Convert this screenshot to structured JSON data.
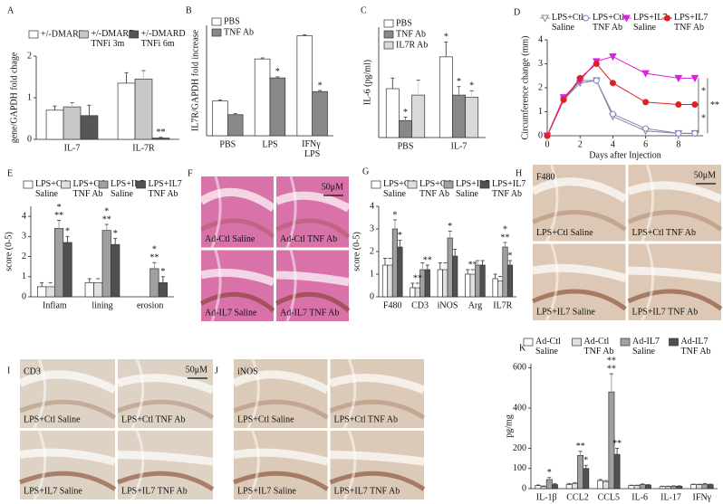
{
  "chart_data": [
    {
      "type": "bar",
      "panel": "A",
      "ylabel": "gene/GAPDH fold chage",
      "categories": [
        "IL-7",
        "IL-7R"
      ],
      "series": [
        {
          "name": "+/-DMARD",
          "color": "#ffffff",
          "values": [
            0.7,
            1.35
          ],
          "errors": [
            0.1,
            0.25
          ]
        },
        {
          "name": "+/-DMARD\nTNFi 3m",
          "color": "#c8c8c8",
          "values": [
            0.78,
            1.45
          ],
          "errors": [
            0.1,
            0.2
          ]
        },
        {
          "name": "+/-DMARD\nTNFi 6m",
          "color": "#555555",
          "values": [
            0.57,
            0.03
          ],
          "errors": [
            0.25,
            0.02
          ]
        }
      ],
      "ylim": [
        0,
        2
      ],
      "yticks": [
        0,
        1,
        2
      ],
      "legend": "top",
      "annotations": [
        {
          "text": "**",
          "series": 2,
          "category": 1
        }
      ]
    },
    {
      "type": "bar",
      "panel": "B",
      "ylabel": "IL7R/GAPDH fold increase",
      "categories": [
        "PBS",
        "LPS",
        "IFNγ\nLPS"
      ],
      "series": [
        {
          "name": "PBS",
          "color": "#ffffff",
          "values": [
            0.33,
            0.73,
            0.95
          ],
          "errors": [
            0.01,
            0.01,
            0.01
          ]
        },
        {
          "name": "TNF Ab",
          "color": "#888888",
          "values": [
            0.2,
            0.55,
            0.42
          ],
          "errors": [
            0.01,
            0.01,
            0.01
          ]
        }
      ],
      "ylim": [
        0,
        1.05
      ],
      "legend": "upper left",
      "annotations": [
        {
          "text": "*",
          "series": 1,
          "category": 1
        },
        {
          "text": "*",
          "series": 1,
          "category": 2
        }
      ]
    },
    {
      "type": "bar",
      "panel": "C",
      "ylabel": "IL-6 (pg/ml)",
      "categories": [
        "PBS",
        "IL-7"
      ],
      "series": [
        {
          "name": "PBS",
          "color": "#ffffff",
          "values": [
            115,
            190
          ],
          "errors": [
            25,
            35
          ]
        },
        {
          "name": "TNF Ab",
          "color": "#888888",
          "values": [
            40,
            100
          ],
          "errors": [
            8,
            20
          ]
        },
        {
          "name": "IL7R Ab",
          "color": "#d9d9d9",
          "values": [
            100,
            95
          ],
          "errors": [
            35,
            15
          ]
        }
      ],
      "ylim": [
        0,
        260
      ],
      "legend": "upper left",
      "annotations": [
        {
          "text": "*",
          "series": 1,
          "category": 0
        },
        {
          "text": "*",
          "series": 1,
          "category": 1
        },
        {
          "text": "*",
          "series": 2,
          "category": 1
        },
        {
          "text": "*",
          "series": 0,
          "category": 1
        }
      ]
    },
    {
      "type": "line",
      "panel": "D",
      "xlabel": "Days after Injection",
      "ylabel": "Circumference change (mm)",
      "x": [
        0,
        1,
        2,
        3,
        4,
        6,
        8,
        9
      ],
      "series": [
        {
          "name": "LPS+Ctl\nSaline",
          "color": "#888888",
          "marker": "triangle-open",
          "values": [
            0,
            1.5,
            2.2,
            2.3,
            0.8,
            0.2,
            0.1,
            0.1
          ]
        },
        {
          "name": "LPS+Ctl\nTNF Ab",
          "color": "#8080c8",
          "marker": "circle-open",
          "values": [
            0,
            1.5,
            2.3,
            2.3,
            0.9,
            0.3,
            0.1,
            0.1
          ]
        },
        {
          "name": "LPS+IL7\nSaline",
          "color": "#e020e0",
          "marker": "triangle",
          "values": [
            0,
            1.6,
            2.3,
            3.1,
            3.3,
            2.6,
            2.4,
            2.4
          ]
        },
        {
          "name": "LPS+IL7\nTNF Ab",
          "color": "#e02020",
          "marker": "circle",
          "values": [
            0,
            1.5,
            2.4,
            3.0,
            2.2,
            1.4,
            1.3,
            1.3
          ]
        }
      ],
      "xlim": [
        0,
        9.5
      ],
      "xticks": [
        0,
        2,
        4,
        6,
        8
      ],
      "ylim": [
        0,
        4
      ],
      "yticks": [
        0,
        1,
        2,
        3,
        4
      ],
      "legend": "top",
      "annotations": [
        {
          "text": "*",
          "between": [
            2,
            3
          ]
        },
        {
          "text": "*",
          "between": [
            3,
            1
          ]
        },
        {
          "text": "**",
          "between": [
            2,
            1
          ]
        }
      ]
    },
    {
      "type": "bar",
      "panel": "E",
      "ylabel": "score (0-5)",
      "categories": [
        "Inflam",
        "lining",
        "erosion"
      ],
      "series": [
        {
          "name": "LPS+Ctl\nSaline",
          "color": "#ffffff",
          "values": [
            0.5,
            0.7,
            0
          ],
          "errors": [
            0.2,
            0.2,
            0
          ]
        },
        {
          "name": "LPS+Ctl\nTNF Ab",
          "color": "#e0e0e0",
          "values": [
            0.5,
            0.7,
            0
          ],
          "errors": [
            0.2,
            0.2,
            0
          ]
        },
        {
          "name": "LPS+IL7\nSaline",
          "color": "#a0a0a0",
          "values": [
            3.4,
            3.3,
            1.4
          ],
          "errors": [
            0.4,
            0.3,
            0.3
          ]
        },
        {
          "name": "LPS+IL7\nTNF Ab",
          "color": "#505050",
          "values": [
            2.7,
            2.6,
            0.7
          ],
          "errors": [
            0.3,
            0.3,
            0.3
          ]
        }
      ],
      "ylim": [
        0,
        4.5
      ],
      "yticks": [
        0,
        1,
        2,
        3,
        4
      ],
      "legend": "top",
      "annotations": [
        {
          "text": "**",
          "series": 2,
          "category": 0
        },
        {
          "text": "*",
          "series": 3,
          "category": 0
        },
        {
          "text": "*",
          "series": 2,
          "category": 0
        },
        {
          "text": "**",
          "series": 2,
          "category": 1
        },
        {
          "text": "*",
          "series": 3,
          "category": 1
        },
        {
          "text": "*",
          "series": 2,
          "category": 1
        },
        {
          "text": "**",
          "series": 2,
          "category": 2
        },
        {
          "text": "*",
          "series": 3,
          "category": 2
        },
        {
          "text": "*",
          "series": 2,
          "category": 2
        }
      ]
    },
    {
      "type": "image",
      "panel": "F",
      "color": "#d872a8",
      "scale_label": "50μM",
      "tiles": [
        "Ad-Ctl Saline",
        "Ad-Ctl TNF Ab",
        "Ad-IL7 Saline",
        "Ad-IL7 TNF Ab"
      ]
    },
    {
      "type": "bar",
      "panel": "G",
      "ylabel": "score (0-5)",
      "categories": [
        "F480",
        "CD3",
        "iNOS",
        "Arg",
        "IL7R"
      ],
      "series": [
        {
          "name": "LPS+Ctl\nSaline",
          "color": "#ffffff",
          "values": [
            1.4,
            0.4,
            1.2,
            1.0,
            0.8
          ],
          "errors": [
            0.3,
            0.2,
            0.3,
            0.2,
            0.2
          ]
        },
        {
          "name": "LPS+Ctl\nTNF Ab",
          "color": "#e0e0e0",
          "values": [
            1.4,
            0.4,
            1.2,
            1.0,
            0.7
          ],
          "errors": [
            0.3,
            0.2,
            0.3,
            0.2,
            0.2
          ]
        },
        {
          "name": "LPS+IL7\nSaline",
          "color": "#a0a0a0",
          "values": [
            3.0,
            1.2,
            2.6,
            1.4,
            2.2
          ],
          "errors": [
            0.4,
            0.3,
            0.3,
            0.2,
            0.2
          ]
        },
        {
          "name": "LPS+IL7\nTNF Ab",
          "color": "#505050",
          "values": [
            2.2,
            1.2,
            1.8,
            1.4,
            1.4
          ],
          "errors": [
            0.3,
            0.2,
            0.3,
            0.2,
            0.2
          ]
        }
      ],
      "ylim": [
        0,
        4
      ],
      "yticks": [
        0,
        1,
        2,
        3,
        4
      ],
      "legend": "top",
      "annotations": [
        {
          "text": "*",
          "series": 2,
          "category": 0
        },
        {
          "text": "*",
          "series": 3,
          "category": 0
        },
        {
          "text": "**",
          "series": 3,
          "category": 1
        },
        {
          "text": "**",
          "series": 1,
          "category": 1
        },
        {
          "text": "*",
          "series": 2,
          "category": 2
        },
        {
          "text": "**",
          "series": 1,
          "category": 3
        },
        {
          "text": "**",
          "series": 2,
          "category": 4
        },
        {
          "text": "*",
          "series": 3,
          "category": 4
        },
        {
          "text": "*",
          "series": 2,
          "category": 4
        }
      ]
    },
    {
      "type": "image",
      "panel": "H",
      "stain": "F480",
      "color": "#dcc8b4",
      "scale_label": "50μM",
      "tiles": [
        "LPS+Ctl Saline",
        "LPS+Ctl TNF Ab",
        "LPS+IL7 Saline",
        "LPS+IL7 TNF Ab"
      ]
    },
    {
      "type": "image",
      "panel": "I",
      "stain": "CD3",
      "color": "#ddd2c4",
      "scale_label": "50μM",
      "tiles": [
        "LPS+Ctl Saline",
        "LPS+Ctl TNF Ab",
        "LPS+IL7 Saline",
        "LPS+IL7 TNF Ab"
      ]
    },
    {
      "type": "image",
      "panel": "J",
      "stain": "iNOS",
      "color": "#dccab8",
      "tiles": [
        "LPS+Ctl Saline",
        "LPS+Ctl TNF Ab",
        "LPS+IL7 Saline",
        "LPS+IL7 TNF Ab"
      ]
    },
    {
      "type": "bar",
      "panel": "K",
      "ylabel": "pg/mg",
      "categories": [
        "IL-1β",
        "CCL2",
        "CCL5",
        "IL-6",
        "IL-17",
        "IFNγ"
      ],
      "series": [
        {
          "name": "Ad-Ctl\nSaline",
          "color": "#ffffff",
          "values": [
            15,
            20,
            40,
            15,
            10,
            20
          ],
          "errors": [
            3,
            5,
            5,
            2,
            2,
            2
          ]
        },
        {
          "name": "Ad-Ctl\nTNF Ab",
          "color": "#e0e0e0",
          "values": [
            10,
            25,
            35,
            15,
            10,
            20
          ],
          "errors": [
            3,
            5,
            5,
            2,
            2,
            2
          ]
        },
        {
          "name": "Ad-IL7\nSaline",
          "color": "#a0a0a0",
          "values": [
            45,
            165,
            480,
            20,
            12,
            22
          ],
          "errors": [
            10,
            20,
            90,
            3,
            2,
            3
          ]
        },
        {
          "name": "Ad-IL7\nTNF Ab",
          "color": "#505050",
          "values": [
            20,
            100,
            170,
            18,
            12,
            20
          ],
          "errors": [
            5,
            15,
            30,
            2,
            2,
            2
          ]
        }
      ],
      "ylim": [
        0,
        620
      ],
      "yticks": [
        0,
        100,
        200,
        400,
        600
      ],
      "legend": "top",
      "annotations": [
        {
          "text": "*",
          "series": 2,
          "category": 0
        },
        {
          "text": "**",
          "series": 2,
          "category": 1
        },
        {
          "text": "*",
          "series": 3,
          "category": 1
        },
        {
          "text": "**",
          "series": 2,
          "category": 2
        },
        {
          "text": "**",
          "series": 2,
          "category": 2
        },
        {
          "text": "**",
          "series": 3,
          "category": 2
        }
      ]
    }
  ]
}
